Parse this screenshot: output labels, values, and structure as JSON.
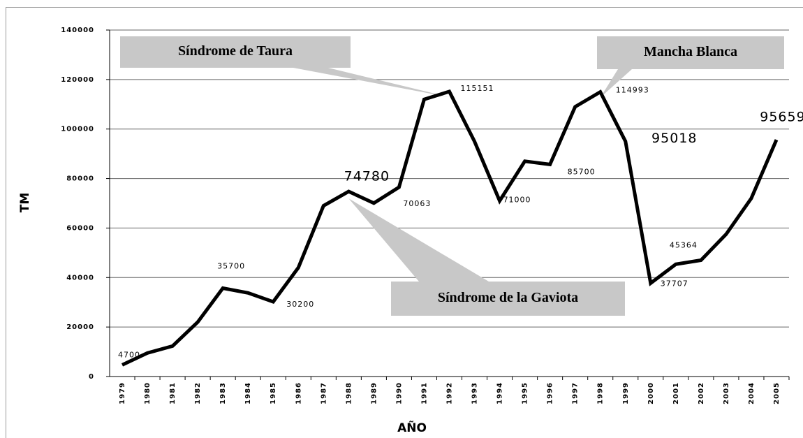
{
  "chart_data": {
    "type": "line",
    "x_label": "AÑO",
    "y_label": "TM",
    "categories": [
      "1979",
      "1980",
      "1981",
      "1982",
      "1983",
      "1984",
      "1985",
      "1986",
      "1987",
      "1988",
      "1989",
      "1990",
      "1991",
      "1992",
      "1993",
      "1994",
      "1995",
      "1996",
      "1997",
      "1998",
      "1999",
      "2000",
      "2001",
      "2002",
      "2003",
      "2004",
      "2005"
    ],
    "series": [
      {
        "name": "TM",
        "color": "#000000",
        "values": [
          4700,
          9500,
          12300,
          22000,
          35700,
          33800,
          30200,
          44000,
          69000,
          74780,
          70063,
          76500,
          112000,
          115151,
          95000,
          71000,
          87000,
          85700,
          109000,
          114993,
          95018,
          37707,
          45364,
          47000,
          57500,
          72000,
          95659
        ]
      }
    ],
    "ylim": [
      0,
      140000
    ],
    "yticks": [
      0,
      20000,
      40000,
      60000,
      80000,
      100000,
      120000,
      140000
    ],
    "grid": true,
    "annotations": [
      "Síndrome de Taura",
      "Mancha Blanca",
      "Síndrome de la Gaviota"
    ]
  }
}
